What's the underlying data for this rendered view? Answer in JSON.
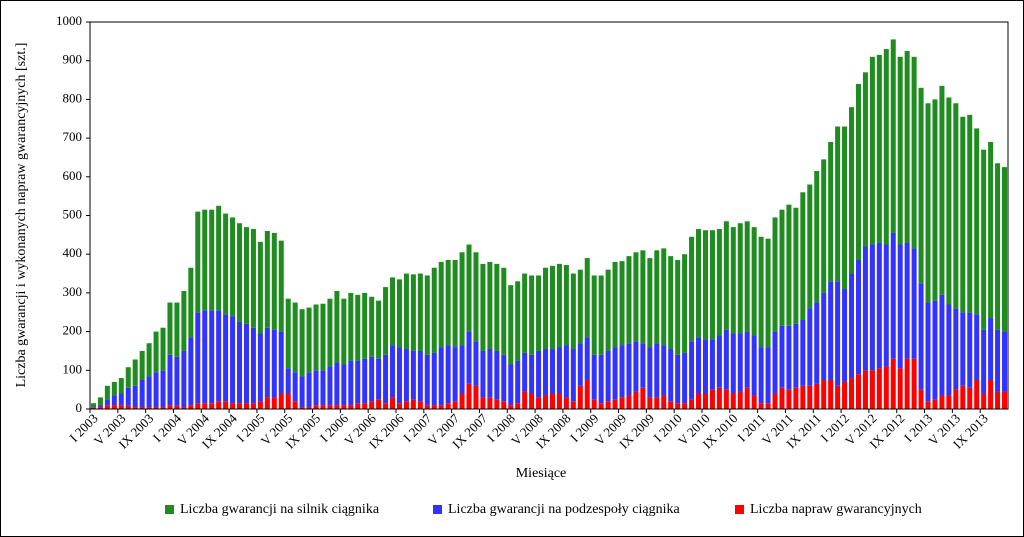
{
  "chart_data": {
    "type": "stacked-bar",
    "ylabel": "Liczba gwarancji i wykonanych napraw gwarancyjnych [szt.]",
    "xlabel": "Miesiące",
    "categories": [
      "I 2003",
      null,
      null,
      null,
      "V 2003",
      null,
      null,
      null,
      "IX 2003",
      null,
      null,
      null,
      "I 2004",
      null,
      null,
      null,
      "V 2004",
      null,
      null,
      null,
      "IX 2004",
      null,
      null,
      null,
      "I 2005",
      null,
      null,
      null,
      "V 2005",
      null,
      null,
      null,
      "IX 2005",
      null,
      null,
      null,
      "I 2006",
      null,
      null,
      null,
      "V 2006",
      null,
      null,
      null,
      "IX 2006",
      null,
      null,
      null,
      "I 2007",
      null,
      null,
      null,
      "V 2007",
      null,
      null,
      null,
      "IX 2007",
      null,
      null,
      null,
      "I 2008",
      null,
      null,
      null,
      "V 2008",
      null,
      null,
      null,
      "IX 2008",
      null,
      null,
      null,
      "I 2009",
      null,
      null,
      null,
      "V 2009",
      null,
      null,
      null,
      "IX 2009",
      null,
      null,
      null,
      "I 2010",
      null,
      null,
      null,
      "V 2010",
      null,
      null,
      null,
      "IX 2010",
      null,
      null,
      null,
      "I 2011",
      null,
      null,
      null,
      "V 2011",
      null,
      null,
      null,
      "IX 2011",
      null,
      null,
      null,
      "I 2012",
      null,
      null,
      null,
      "V 2012",
      null,
      null,
      null,
      "IX 2012",
      null,
      null,
      null,
      "I 2013",
      null,
      null,
      null,
      "V 2013",
      null,
      null,
      null,
      "IX 2013",
      null,
      null,
      null
    ],
    "series": [
      {
        "name": "Liczba napraw gwarancyjnych",
        "color": "#ff0000",
        "values": [
          3,
          5,
          10,
          10,
          10,
          8,
          5,
          5,
          5,
          5,
          5,
          10,
          8,
          5,
          10,
          15,
          15,
          15,
          20,
          20,
          15,
          15,
          15,
          15,
          20,
          30,
          30,
          40,
          40,
          20,
          5,
          5,
          10,
          10,
          10,
          10,
          10,
          10,
          15,
          15,
          20,
          25,
          15,
          30,
          15,
          20,
          25,
          20,
          10,
          10,
          10,
          15,
          20,
          40,
          65,
          60,
          30,
          30,
          25,
          20,
          10,
          15,
          45,
          40,
          30,
          35,
          40,
          40,
          30,
          20,
          60,
          75,
          25,
          15,
          20,
          25,
          30,
          35,
          45,
          55,
          30,
          30,
          35,
          20,
          15,
          15,
          25,
          40,
          40,
          50,
          55,
          50,
          40,
          45,
          55,
          35,
          15,
          15,
          40,
          55,
          50,
          55,
          60,
          60,
          65,
          75,
          75,
          60,
          70,
          80,
          90,
          100,
          100,
          105,
          110,
          130,
          105,
          130,
          130,
          50,
          20,
          25,
          35,
          35,
          50,
          60,
          55,
          75,
          40,
          75,
          45,
          45
        ]
      },
      {
        "name": "Liczba gwarancji na podzespoły ciągnika",
        "color": "#3333ff",
        "values": [
          2,
          5,
          15,
          25,
          30,
          47,
          55,
          70,
          80,
          90,
          95,
          130,
          127,
          145,
          175,
          235,
          240,
          240,
          235,
          225,
          225,
          210,
          205,
          195,
          175,
          180,
          175,
          160,
          65,
          75,
          80,
          90,
          90,
          90,
          100,
          110,
          105,
          115,
          110,
          115,
          115,
          105,
          125,
          135,
          145,
          135,
          125,
          130,
          130,
          135,
          150,
          150,
          140,
          125,
          135,
          115,
          120,
          125,
          125,
          120,
          105,
          110,
          100,
          100,
          120,
          120,
          115,
          120,
          135,
          135,
          110,
          110,
          115,
          125,
          130,
          135,
          135,
          135,
          130,
          115,
          130,
          140,
          130,
          135,
          125,
          130,
          150,
          145,
          140,
          130,
          135,
          155,
          155,
          150,
          145,
          155,
          145,
          145,
          160,
          160,
          165,
          165,
          170,
          200,
          210,
          225,
          255,
          270,
          240,
          270,
          295,
          320,
          325,
          325,
          315,
          325,
          320,
          300,
          285,
          275,
          255,
          255,
          260,
          235,
          210,
          190,
          195,
          170,
          165,
          160,
          160,
          155
        ]
      },
      {
        "name": "Liczba gwarancji na silnik ciągnika",
        "color": "#1e8c1e",
        "values": [
          10,
          20,
          35,
          35,
          40,
          53,
          68,
          75,
          85,
          105,
          110,
          135,
          140,
          155,
          180,
          260,
          260,
          260,
          270,
          260,
          255,
          255,
          250,
          255,
          237,
          250,
          250,
          235,
          180,
          180,
          173,
          167,
          170,
          172,
          175,
          185,
          170,
          175,
          170,
          170,
          155,
          150,
          175,
          175,
          175,
          195,
          198,
          200,
          205,
          220,
          220,
          220,
          225,
          240,
          225,
          230,
          225,
          225,
          225,
          225,
          205,
          205,
          205,
          205,
          195,
          210,
          215,
          215,
          207,
          195,
          190,
          205,
          205,
          205,
          210,
          220,
          217,
          225,
          230,
          240,
          230,
          240,
          250,
          240,
          245,
          255,
          270,
          280,
          282,
          282,
          275,
          280,
          275,
          285,
          285,
          280,
          285,
          280,
          295,
          300,
          313,
          300,
          330,
          320,
          340,
          345,
          360,
          400,
          420,
          430,
          455,
          450,
          485,
          485,
          505,
          500,
          485,
          495,
          495,
          505,
          515,
          520,
          540,
          535,
          530,
          505,
          510,
          480,
          465,
          455,
          430,
          425
        ]
      }
    ],
    "legend_order": [
      2,
      1,
      0
    ],
    "ylim": [
      0,
      1000
    ],
    "yticks": [
      0,
      100,
      200,
      300,
      400,
      500,
      600,
      700,
      800,
      900,
      1000
    ],
    "grid": false
  }
}
